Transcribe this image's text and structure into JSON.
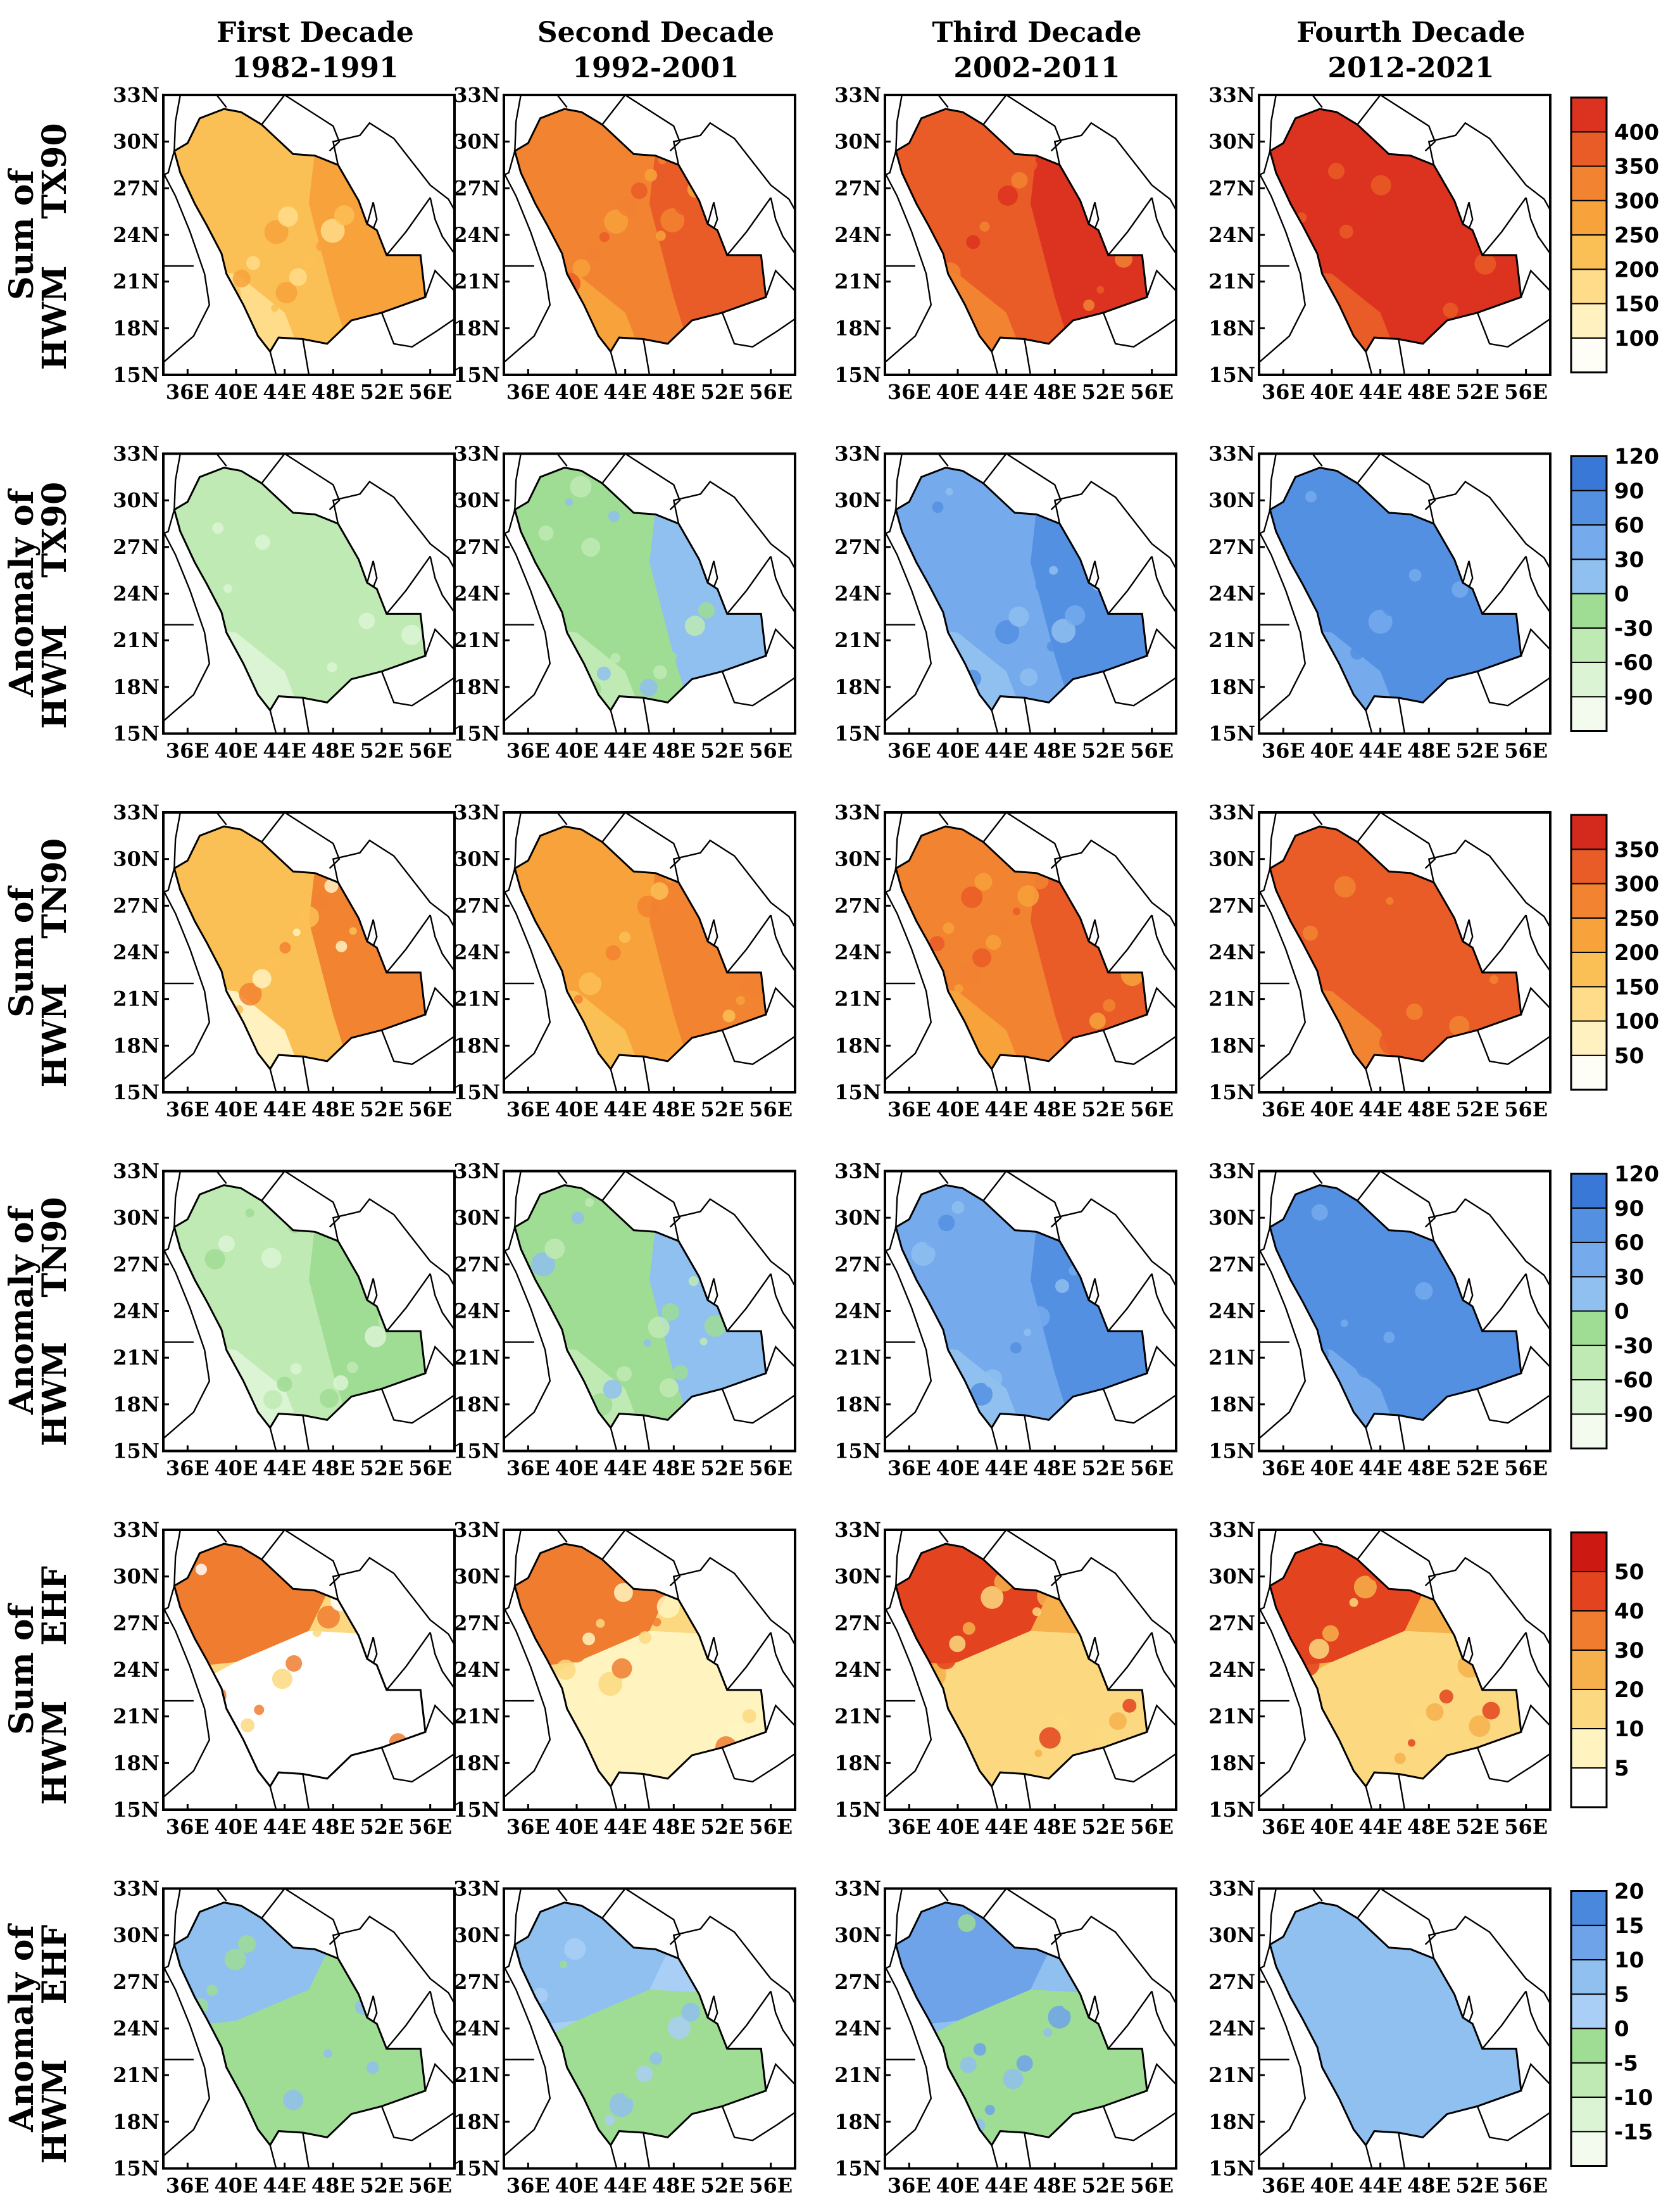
{
  "figure": {
    "columns": [
      {
        "title": "First Decade",
        "years": "1982-1991"
      },
      {
        "title": "Second Decade",
        "years": "1992-2001"
      },
      {
        "title": "Third Decade",
        "years": "2002-2011"
      },
      {
        "title": "Fourth Decade",
        "years": "2012-2021"
      }
    ],
    "lat_ticks": [
      "33N",
      "30N",
      "27N",
      "24N",
      "21N",
      "18N",
      "15N"
    ],
    "lon_ticks": [
      "36E",
      "40E",
      "44E",
      "48E",
      "52E",
      "56E"
    ],
    "rows": [
      {
        "label_line1": "Sum of",
        "label_line2": "HWM",
        "index": "TX90",
        "kind": "sum",
        "palette": [
          "#fffef6",
          "#fff1c0",
          "#ffdc8a",
          "#fbc055",
          "#f7a23b",
          "#f28331",
          "#ea5c27",
          "#dc3320"
        ],
        "colorbar_ticks": [
          "100",
          "150",
          "200",
          "250",
          "300",
          "350",
          "400"
        ],
        "panel_levels": [
          [
            2,
            3,
            4
          ],
          [
            4,
            5,
            6
          ],
          [
            5,
            6,
            7
          ],
          [
            6,
            7,
            7
          ]
        ]
      },
      {
        "label_line1": "Anomaly of",
        "label_line2": "HWM",
        "index": "TX90",
        "kind": "anomaly",
        "palette": [
          "#f3fbef",
          "#dbf4d3",
          "#bfeab4",
          "#9fdc94",
          "#8fc0f0",
          "#75aaec",
          "#5490e2",
          "#3a78d8"
        ],
        "colorbar_ticks": [
          "-90",
          "-60",
          "-30",
          "0",
          "30",
          "60",
          "90",
          "120"
        ],
        "panel_levels": [
          [
            1,
            2,
            2
          ],
          [
            2,
            3,
            4
          ],
          [
            4,
            5,
            6
          ],
          [
            5,
            6,
            6
          ]
        ]
      },
      {
        "label_line1": "Sum of",
        "label_line2": "HWM",
        "index": "TN90",
        "kind": "sum",
        "palette": [
          "#fffef6",
          "#fff1c0",
          "#ffdc8a",
          "#fbc055",
          "#f7a23b",
          "#f28331",
          "#ea5c27",
          "#d42a1e"
        ],
        "colorbar_ticks": [
          "50",
          "100",
          "150",
          "200",
          "250",
          "300",
          "350"
        ],
        "panel_levels": [
          [
            1,
            3,
            5
          ],
          [
            3,
            4,
            5
          ],
          [
            4,
            5,
            6
          ],
          [
            5,
            6,
            6
          ]
        ]
      },
      {
        "label_line1": "Anomaly of",
        "label_line2": "HWM",
        "index": "TN90",
        "kind": "anomaly",
        "palette": [
          "#f3fbef",
          "#dbf4d3",
          "#bfeab4",
          "#9fdc94",
          "#8fc0f0",
          "#75aaec",
          "#5490e2",
          "#3a78d8"
        ],
        "colorbar_ticks": [
          "-90",
          "-60",
          "-30",
          "0",
          "30",
          "60",
          "90",
          "120"
        ],
        "panel_levels": [
          [
            1,
            2,
            3
          ],
          [
            2,
            3,
            4
          ],
          [
            4,
            5,
            6
          ],
          [
            5,
            6,
            6
          ]
        ]
      },
      {
        "label_line1": "Sum of",
        "label_line2": "HWM",
        "index": "EHF",
        "kind": "sum",
        "palette": [
          "#ffffff",
          "#fff4bf",
          "#fcd980",
          "#f6b04c",
          "#f07c30",
          "#e3431f",
          "#cc1a12"
        ],
        "colorbar_ticks": [
          "5",
          "10",
          "20",
          "30",
          "40",
          "50"
        ],
        "panel_levels": [
          [
            0,
            2,
            4
          ],
          [
            1,
            2,
            4
          ],
          [
            2,
            3,
            5
          ],
          [
            2,
            3,
            5
          ]
        ]
      },
      {
        "label_line1": "Anomaly of",
        "label_line2": "HWM",
        "index": "EHF",
        "kind": "anomaly",
        "palette": [
          "#f3fbef",
          "#dbf4d3",
          "#bfeab4",
          "#9fdc94",
          "#a9cff6",
          "#8fc0f0",
          "#6ea3ea",
          "#4a88de"
        ],
        "colorbar_ticks": [
          "-15",
          "-10",
          "-5",
          "0",
          "5",
          "10",
          "15",
          "20"
        ],
        "panel_levels": [
          [
            3,
            3,
            5
          ],
          [
            3,
            4,
            5
          ],
          [
            3,
            5,
            6
          ],
          [
            5,
            5,
            5
          ]
        ]
      }
    ]
  }
}
